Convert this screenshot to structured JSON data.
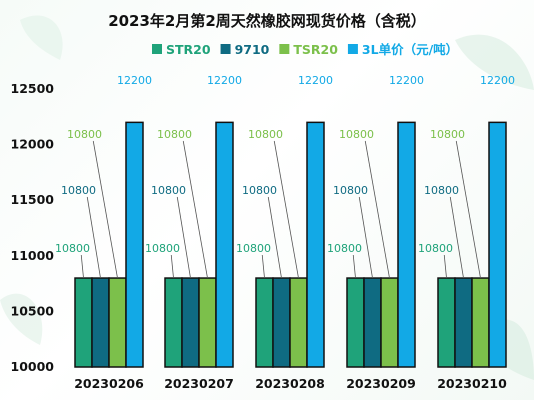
{
  "chart_data": {
    "type": "bar",
    "title": "2023年2月第2周天然橡胶网现货价格（含税）",
    "xlabel": "",
    "ylabel": "",
    "categories": [
      "20230206",
      "20230207",
      "20230208",
      "20230209",
      "20230210"
    ],
    "series": [
      {
        "name": "STR20",
        "color": "#1fa37a",
        "values": [
          10800,
          10800,
          10800,
          10800,
          10800
        ]
      },
      {
        "name": "9710",
        "color": "#0f6b82",
        "values": [
          10800,
          10800,
          10800,
          10800,
          10800
        ]
      },
      {
        "name": "TSR20",
        "color": "#7cc04b",
        "values": [
          10800,
          10800,
          10800,
          10800,
          10800
        ]
      },
      {
        "name": "3L单价（元/吨）",
        "color": "#12a9e6",
        "values": [
          12200,
          12200,
          12200,
          12200,
          12200
        ]
      }
    ],
    "yticks": [
      "10000",
      "10500",
      "11000",
      "11500",
      "12000",
      "12500"
    ],
    "ylim": [
      10000,
      12500
    ],
    "legend_position": "top",
    "grid": false
  }
}
